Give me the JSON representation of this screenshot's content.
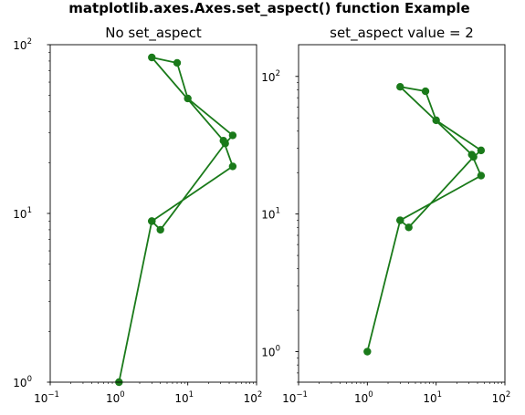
{
  "figure": {
    "suptitle": "matplotlib.axes.Axes.set_aspect() function Example"
  },
  "colors": {
    "series": "#1a7a1a",
    "axes": "#000000",
    "background": "#ffffff"
  },
  "chart_data": [
    {
      "type": "line",
      "title": "No set_aspect",
      "xscale": "log",
      "yscale": "log",
      "xlim": [
        0.1,
        100
      ],
      "ylim": [
        1,
        100
      ],
      "xticks": [
        {
          "base": "10",
          "exp": "−1"
        },
        {
          "base": "10",
          "exp": "0"
        },
        {
          "base": "10",
          "exp": "1"
        },
        {
          "base": "10",
          "exp": "2"
        }
      ],
      "yticks": [
        {
          "base": "10",
          "exp": "0"
        },
        {
          "base": "10",
          "exp": "1"
        },
        {
          "base": "10",
          "exp": "2"
        }
      ],
      "marker": "circle",
      "x": [
        1,
        3,
        4,
        35,
        45,
        10,
        7,
        3,
        33,
        45,
        3
      ],
      "y": [
        1,
        9,
        8,
        26,
        29,
        48,
        78,
        84,
        27,
        19,
        9
      ]
    },
    {
      "type": "line",
      "title": "set_aspect value = 2",
      "xscale": "log",
      "yscale": "log",
      "xlim": [
        0.1,
        100
      ],
      "ylim": [
        0.6,
        170
      ],
      "xticks": [
        {
          "base": "10",
          "exp": "−1"
        },
        {
          "base": "10",
          "exp": "0"
        },
        {
          "base": "10",
          "exp": "1"
        },
        {
          "base": "10",
          "exp": "2"
        }
      ],
      "yticks": [
        {
          "base": "10",
          "exp": "0"
        },
        {
          "base": "10",
          "exp": "1"
        },
        {
          "base": "10",
          "exp": "2"
        }
      ],
      "marker": "circle",
      "x": [
        1,
        3,
        4,
        35,
        45,
        10,
        7,
        3,
        33,
        45,
        3
      ],
      "y": [
        1,
        9,
        8,
        26,
        29,
        48,
        78,
        84,
        27,
        19,
        9
      ]
    }
  ]
}
